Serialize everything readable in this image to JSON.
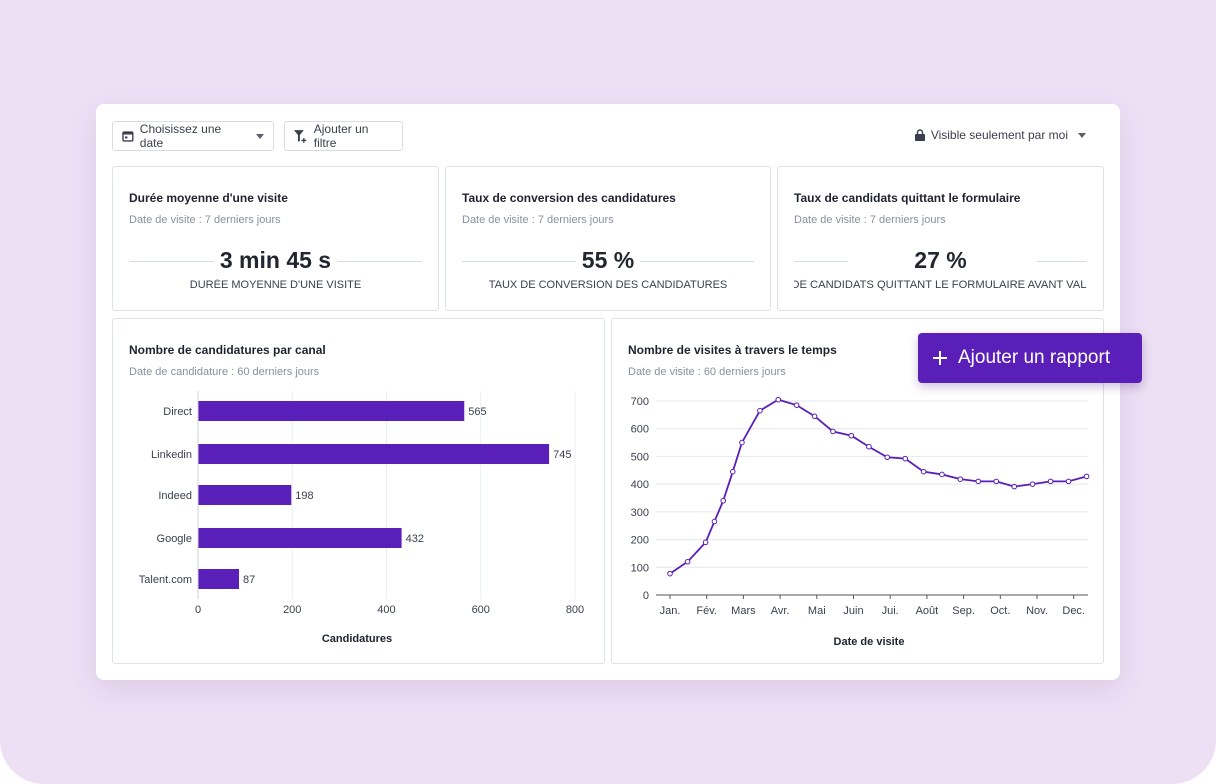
{
  "toolbar": {
    "date_label": "Choisissez une date",
    "filter_label": "Ajouter un filtre",
    "visibility_label": "Visible seulement par moi"
  },
  "kpis": [
    {
      "title": "Durée moyenne d'une visite",
      "subtitle": "Date de visite : 7 derniers jours",
      "value": "3 min 45 s",
      "label": "DURÉE MOYENNE D'UNE VISITE"
    },
    {
      "title": "Taux de conversion des candidatures",
      "subtitle": "Date de visite : 7 derniers jours",
      "value": "55 %",
      "label": "TAUX DE CONVERSION DES CANDIDATURES"
    },
    {
      "title": "Taux de candidats quittant le formulaire",
      "subtitle": "Date de visite : 7 derniers jours",
      "value": "27 %",
      "label": "DE CANDIDATS QUITTANT LE FORMULAIRE AVANT VALI"
    }
  ],
  "add_report_label": "Ajouter un rapport",
  "colors": {
    "accent": "#5a1fb8",
    "background": "#ede0f5"
  },
  "chart_data": [
    {
      "type": "bar",
      "orientation": "horizontal",
      "title": "Nombre de candidatures par canal",
      "subtitle": "Date de candidature : 60 derniers jours",
      "categories": [
        "Direct",
        "Linkedin",
        "Indeed",
        "Google",
        "Talent.com"
      ],
      "values": [
        565,
        745,
        198,
        432,
        87
      ],
      "xlabel": "Candidatures",
      "xlim": [
        0,
        800
      ],
      "xticks": [
        0,
        200,
        400,
        600,
        800
      ],
      "grid": true
    },
    {
      "type": "line",
      "title": "Nombre de visites à travers le temps",
      "subtitle": "Date de visite : 60 derniers jours",
      "categories": [
        "Jan.",
        "Fév.",
        "Mars",
        "Avr.",
        "Mai",
        "Juin",
        "Jui.",
        "Août",
        "Sep.",
        "Oct.",
        "Nov.",
        "Dec."
      ],
      "x": [
        0,
        0.48,
        0.97,
        1.21,
        1.45,
        1.71,
        1.96,
        2.45,
        2.95,
        3.45,
        3.94,
        4.44,
        4.94,
        5.42,
        5.92,
        6.41,
        6.91,
        7.41,
        7.91,
        8.4,
        8.89,
        9.38,
        9.88,
        10.37,
        10.86,
        11.35
      ],
      "y": [
        77,
        120,
        190,
        265,
        340,
        445,
        550,
        665,
        705,
        685,
        645,
        590,
        575,
        535,
        497,
        492,
        445,
        435,
        418,
        410,
        410,
        391,
        400,
        410,
        410,
        428
      ],
      "xlabel": "Date de visite",
      "ylim": [
        0,
        700
      ],
      "yticks": [
        0,
        100,
        200,
        300,
        400,
        500,
        600,
        700
      ],
      "grid": true
    }
  ]
}
